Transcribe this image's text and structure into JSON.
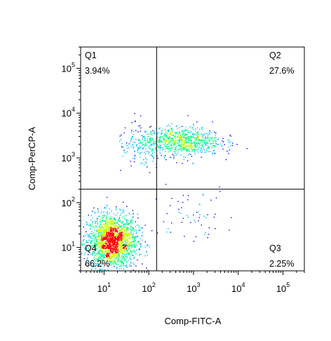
{
  "chart_data": {
    "type": "scatter",
    "title": "",
    "xlabel": "Comp-FITC-A",
    "ylabel": "Comp-PerCP-A",
    "x_scale": "log",
    "y_scale": "log",
    "xlim": [
      3.0,
      300000
    ],
    "ylim": [
      3.0,
      300000
    ],
    "x_ticks": [
      {
        "base": "10",
        "exp": "1",
        "value": 10
      },
      {
        "base": "10",
        "exp": "2",
        "value": 100
      },
      {
        "base": "10",
        "exp": "3",
        "value": 1000
      },
      {
        "base": "10",
        "exp": "4",
        "value": 10000
      },
      {
        "base": "10",
        "exp": "5",
        "value": 100000
      }
    ],
    "y_ticks": [
      {
        "base": "10",
        "exp": "1",
        "value": 10
      },
      {
        "base": "10",
        "exp": "2",
        "value": 100
      },
      {
        "base": "10",
        "exp": "3",
        "value": 1000
      },
      {
        "base": "10",
        "exp": "4",
        "value": 10000
      },
      {
        "base": "10",
        "exp": "5",
        "value": 100000
      }
    ],
    "gate": {
      "x": 150,
      "y": 200
    },
    "quadrants": [
      {
        "name": "Q1",
        "percent": "3.94%",
        "position": "top-left"
      },
      {
        "name": "Q2",
        "percent": "27.6%",
        "position": "top-right"
      },
      {
        "name": "Q3",
        "percent": "2.25%",
        "position": "bottom-right"
      },
      {
        "name": "Q4",
        "percent": "66.2%",
        "position": "bottom-left"
      }
    ],
    "populations": [
      {
        "name": "double-negative",
        "x_center": 15,
        "y_center": 14,
        "x_spread_log": 0.28,
        "y_spread_log": 0.3,
        "share": 0.66
      },
      {
        "name": "double-positive",
        "x_center": 500,
        "y_center": 2400,
        "x_spread_log": 0.45,
        "y_spread_log": 0.16,
        "share": 0.28
      },
      {
        "name": "single-positive-perCP",
        "x_center": 60,
        "y_center": 1500,
        "x_spread_log": 0.25,
        "y_spread_log": 0.25,
        "share": 0.04
      },
      {
        "name": "single-positive-fitc",
        "x_center": 800,
        "y_center": 60,
        "x_spread_log": 0.5,
        "y_spread_log": 0.3,
        "share": 0.02
      }
    ],
    "density_colors": [
      "#0000ff",
      "#00c0ff",
      "#00ff80",
      "#c0ff00",
      "#ff0000"
    ],
    "grid": false,
    "legend": "none"
  }
}
